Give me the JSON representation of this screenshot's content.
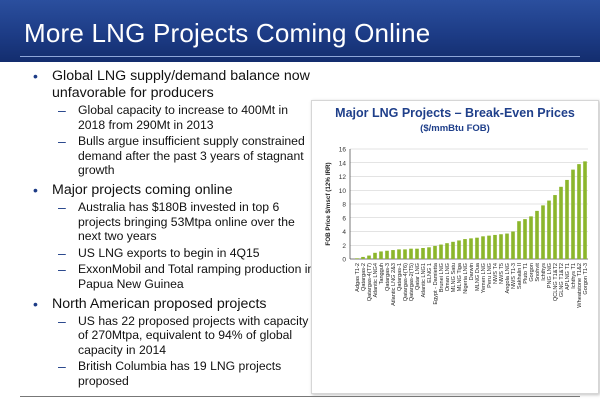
{
  "slide": {
    "title": "More LNG Projects Coming Online"
  },
  "bullets": [
    {
      "text": "Global LNG supply/demand balance now unfavorable for producers",
      "subs": [
        "Global capacity to increase to 400Mt in 2018 from 290Mt in 2013",
        "Bulls argue insufficient supply constrained demand after the past 3 years of stagnant growth"
      ]
    },
    {
      "text": "Major projects coming online",
      "subs": [
        "Australia has $180B invested in top 6 projects bringing 53Mtpa online over the next two years",
        "US LNG exports to begin in 4Q15",
        "ExxonMobil and Total ramping production in Papua New Guinea"
      ]
    },
    {
      "text": "North American proposed projects",
      "subs": [
        "US has 22 proposed projects with capacity of 270Mtpa, equivalent to 94% of global capacity in 2014",
        "British Columbia has 19 LNG projects proposed"
      ]
    }
  ],
  "colors": {
    "title_bar": "#1d3c86",
    "bar": "#8cb62b",
    "chart_title": "#1f3f8a"
  },
  "chart_data": {
    "type": "bar",
    "title": "Major LNG Projects – Break-Even Prices",
    "subtitle": "($/mmBtu FOB)",
    "ylabel": "FOB Price $/mscf (12% IRR)",
    "xlabel": "",
    "ylim": [
      0,
      16
    ],
    "yticks": [
      0,
      2,
      4,
      6,
      8,
      10,
      12,
      14,
      16
    ],
    "grid": true,
    "categories": [
      "Adgas T1-2",
      "Qatargas-2",
      "Qatargas-4(T7)",
      "Atlantic LNG4",
      "Tangguh",
      "Qatargas-3",
      "Atlantic LNG 2&3",
      "Qatargas-1",
      "Qatargas-4(T6)",
      "Qatargas-2(T5)",
      "Qatar LNG",
      "Atlantic LNG1",
      "ELNG 1",
      "Egypt - Damietta",
      "Brunei LNG",
      "Oman LNG",
      "MLNG Satu",
      "MLNG Tiga",
      "Nigeria LNG",
      "Darwin",
      "MLNG Dua",
      "Yemen LNG",
      "Peru LNG",
      "NWS T4",
      "NWS T5",
      "Angola LNG",
      "NWS T1-3",
      "Sakhalin II",
      "Pluto T1",
      "Gorgon",
      "Snohvit",
      "Ichthys",
      "PNG LNG",
      "QCLNG T1&T2",
      "GLNG T1&T2",
      "APLNG T1",
      "Ichthys T1",
      "Wheatstone T1&2",
      "Gorgon T1-3"
    ],
    "values": [
      0.1,
      0.3,
      0.5,
      0.9,
      1.1,
      1.2,
      1.3,
      1.4,
      1.4,
      1.5,
      1.5,
      1.6,
      1.7,
      1.9,
      2.1,
      2.3,
      2.5,
      2.7,
      2.9,
      3.0,
      3.1,
      3.3,
      3.4,
      3.5,
      3.6,
      3.7,
      4.0,
      5.5,
      5.8,
      6.2,
      7.0,
      7.8,
      8.5,
      9.3,
      10.5,
      11.5,
      13.0,
      13.8,
      14.2
    ]
  }
}
